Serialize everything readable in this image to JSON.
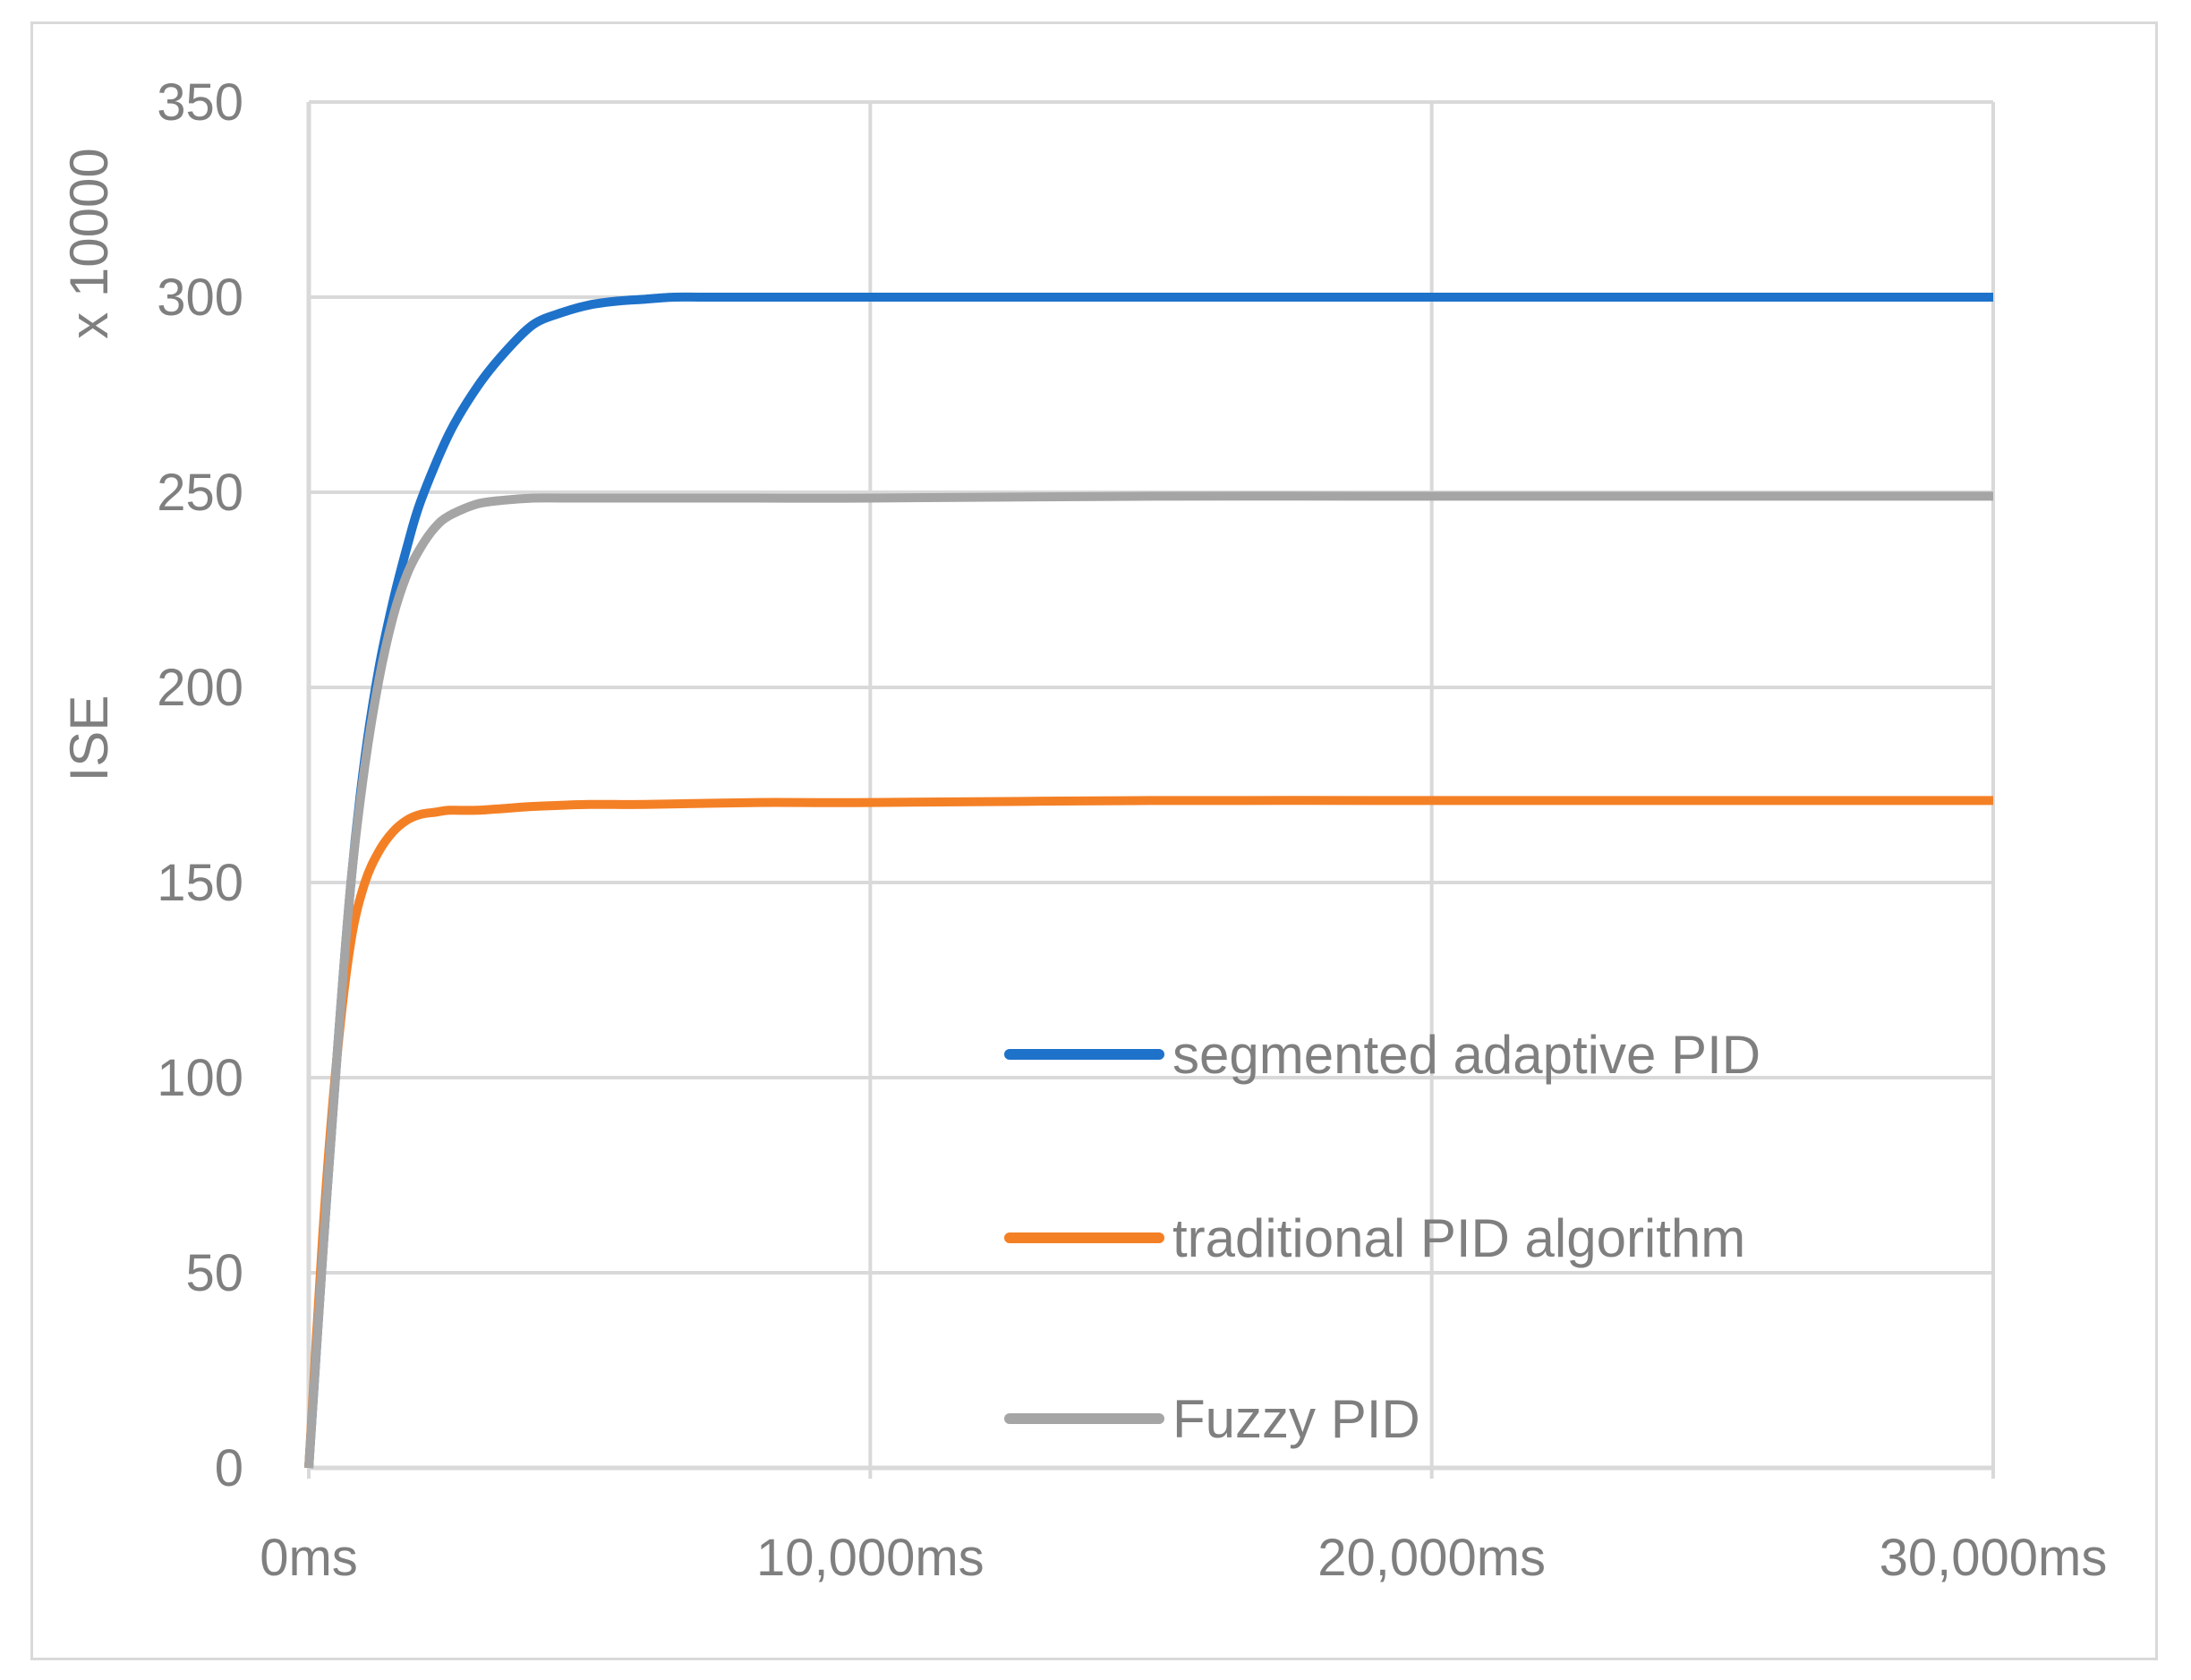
{
  "chart_data": {
    "type": "line",
    "title": "",
    "xlabel": "",
    "ylabel": "ISE",
    "y_multiplier_label": "x 10000",
    "x_unit": "ms",
    "xlim": [
      0,
      30000
    ],
    "ylim": [
      0,
      350
    ],
    "x_ticks": [
      0,
      10000,
      20000,
      30000
    ],
    "x_tick_labels": [
      "0ms",
      "10,000ms",
      "20,000ms",
      "30,000ms"
    ],
    "y_ticks": [
      0,
      50,
      100,
      150,
      200,
      250,
      300,
      350
    ],
    "y_tick_labels": [
      "0",
      "50",
      "100",
      "150",
      "200",
      "250",
      "300",
      "350"
    ],
    "grid": true,
    "legend_position": "bottom-right inside plot",
    "series": [
      {
        "name": "segmented adaptive PID",
        "color": "#1f72c9",
        "x": [
          0,
          250,
          500,
          750,
          1000,
          1250,
          1500,
          1750,
          2000,
          2500,
          3000,
          3500,
          4000,
          4500,
          5000,
          5500,
          6000,
          6500,
          7000,
          8000,
          9000,
          10000,
          15000,
          20000,
          25000,
          30000
        ],
        "y": [
          0,
          55,
          105,
          150,
          182,
          205,
          222,
          236,
          248,
          265,
          277,
          286,
          293,
          296,
          298,
          299,
          299.5,
          300,
          300,
          300,
          300,
          300,
          300,
          300,
          300,
          300
        ]
      },
      {
        "name": "traditional PID algorithm",
        "color": "#f48026",
        "x": [
          0,
          250,
          500,
          750,
          1000,
          1250,
          1500,
          1750,
          2000,
          2250,
          2500,
          3000,
          3500,
          4000,
          5000,
          6000,
          8000,
          10000,
          15000,
          20000,
          25000,
          30000
        ],
        "y": [
          0,
          60,
          105,
          135,
          150,
          158,
          163,
          166,
          167.5,
          168,
          168.5,
          168.5,
          169,
          169.5,
          170,
          170,
          170.5,
          170.5,
          171,
          171,
          171,
          171
        ]
      },
      {
        "name": "Fuzzy PID",
        "color": "#a5a5a5",
        "x": [
          0,
          250,
          500,
          750,
          1000,
          1250,
          1500,
          1750,
          2000,
          2250,
          2500,
          3000,
          3500,
          4000,
          4500,
          5000,
          6000,
          8000,
          10000,
          15000,
          20000,
          25000,
          30000
        ],
        "y": [
          0,
          55,
          105,
          150,
          180,
          202,
          218,
          229,
          236,
          241,
          244,
          247,
          248,
          248.5,
          248.5,
          248.5,
          248.5,
          248.5,
          248.5,
          249,
          249,
          249,
          249
        ]
      }
    ]
  }
}
